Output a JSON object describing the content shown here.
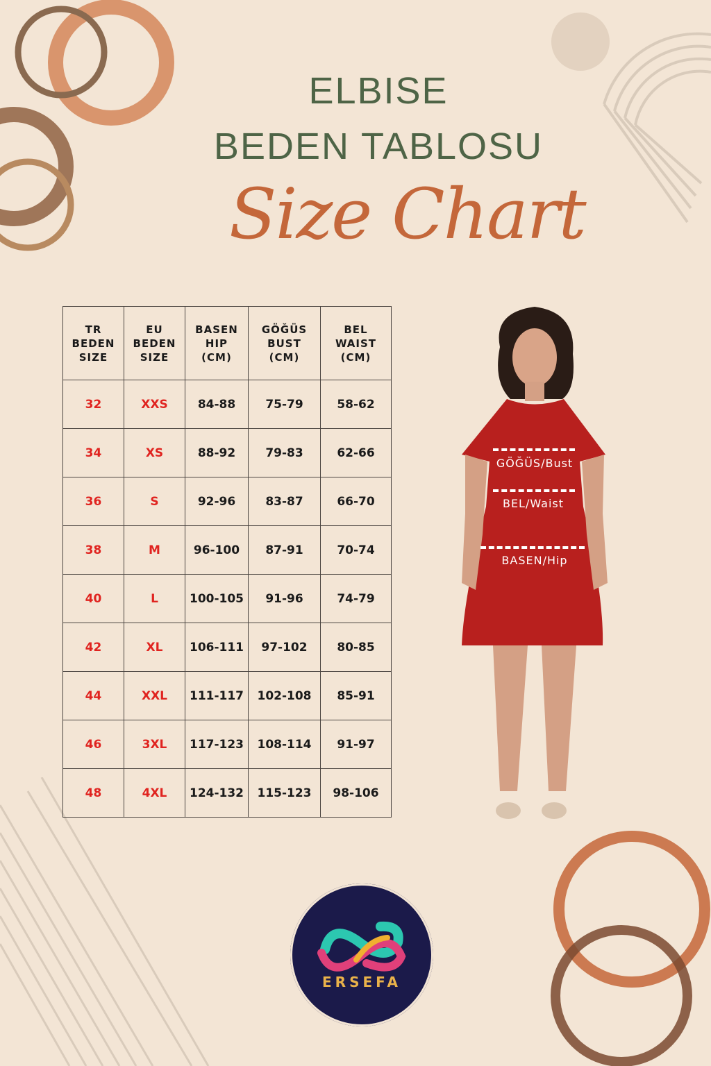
{
  "title": {
    "line1": "ELBISE",
    "line2": "BEDEN TABLOSU",
    "script": "Size Chart"
  },
  "table": {
    "headers": [
      [
        "TR",
        "BEDEN",
        "SIZE"
      ],
      [
        "EU",
        "BEDEN",
        "SIZE"
      ],
      [
        "BASEN",
        "HIP",
        "(CM)"
      ],
      [
        "GÖĞÜS",
        "BUST",
        "(CM)"
      ],
      [
        "BEL",
        "WAIST",
        "(CM)"
      ]
    ],
    "rows": [
      [
        "32",
        "XXS",
        "84-88",
        "75-79",
        "58-62"
      ],
      [
        "34",
        "XS",
        "88-92",
        "79-83",
        "62-66"
      ],
      [
        "36",
        "S",
        "92-96",
        "83-87",
        "66-70"
      ],
      [
        "38",
        "M",
        "96-100",
        "87-91",
        "70-74"
      ],
      [
        "40",
        "L",
        "100-105",
        "91-96",
        "74-79"
      ],
      [
        "42",
        "XL",
        "106-111",
        "97-102",
        "80-85"
      ],
      [
        "44",
        "XXL",
        "111-117",
        "102-108",
        "85-91"
      ],
      [
        "46",
        "3XL",
        "117-123",
        "108-114",
        "91-97"
      ],
      [
        "48",
        "4XL",
        "124-132",
        "115-123",
        "98-106"
      ]
    ]
  },
  "model": {
    "bust_label": "GÖĞÜS/Bust",
    "waist_label": "BEL/Waist",
    "hip_label": "BASEN/Hip"
  },
  "brand": {
    "name": "ERSEFA"
  },
  "colors": {
    "background": "#f3e5d5",
    "title": "#4e6446",
    "script": "#c4673a",
    "size_red": "#e0231f",
    "dress": "#b8201e",
    "logo_bg": "#1b1a4a"
  }
}
